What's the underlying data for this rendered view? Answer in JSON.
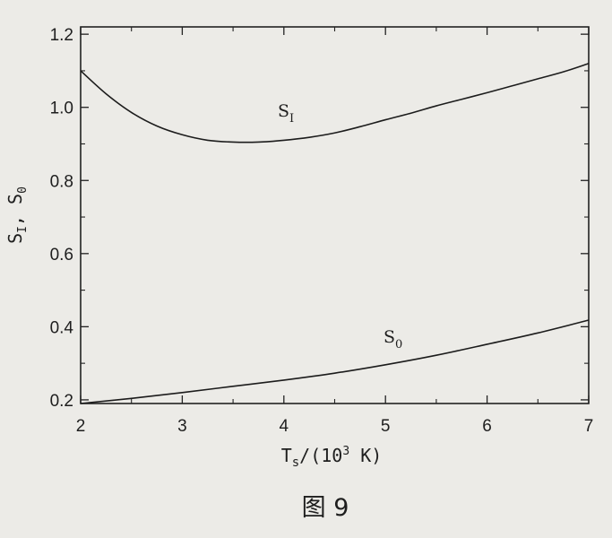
{
  "chart_data": {
    "type": "line",
    "xlabel": "Ts/(10³ K)",
    "ylabel": "SI, S0",
    "xlim": [
      2,
      7
    ],
    "ylim": [
      0.19,
      1.22
    ],
    "xticks": [
      2,
      3,
      4,
      5,
      6,
      7
    ],
    "yticks": [
      0.2,
      0.4,
      0.6,
      0.8,
      1.0,
      1.2
    ],
    "xtick_labels": [
      "2",
      "3",
      "4",
      "5",
      "6",
      "7"
    ],
    "ytick_labels": [
      "0.2",
      "0.4",
      "0.6",
      "0.8",
      "1.0",
      "1.2"
    ],
    "grid": false,
    "series": [
      {
        "name": "SI",
        "x": [
          2.0,
          2.25,
          2.5,
          2.75,
          3.0,
          3.25,
          3.5,
          3.75,
          4.0,
          4.25,
          4.5,
          4.75,
          5.0,
          5.25,
          5.5,
          5.75,
          6.0,
          6.25,
          6.5,
          6.75,
          7.0
        ],
        "y": [
          1.1,
          1.037,
          0.986,
          0.949,
          0.925,
          0.91,
          0.905,
          0.905,
          0.91,
          0.918,
          0.93,
          0.947,
          0.966,
          0.984,
          1.004,
          1.022,
          1.04,
          1.059,
          1.078,
          1.097,
          1.12
        ]
      },
      {
        "name": "S0",
        "x": [
          2.0,
          2.5,
          3.0,
          3.5,
          4.0,
          4.5,
          5.0,
          5.5,
          6.0,
          6.5,
          7.0
        ],
        "y": [
          0.19,
          0.204,
          0.22,
          0.237,
          0.254,
          0.273,
          0.296,
          0.322,
          0.352,
          0.383,
          0.418
        ]
      }
    ]
  },
  "caption": "图 9"
}
